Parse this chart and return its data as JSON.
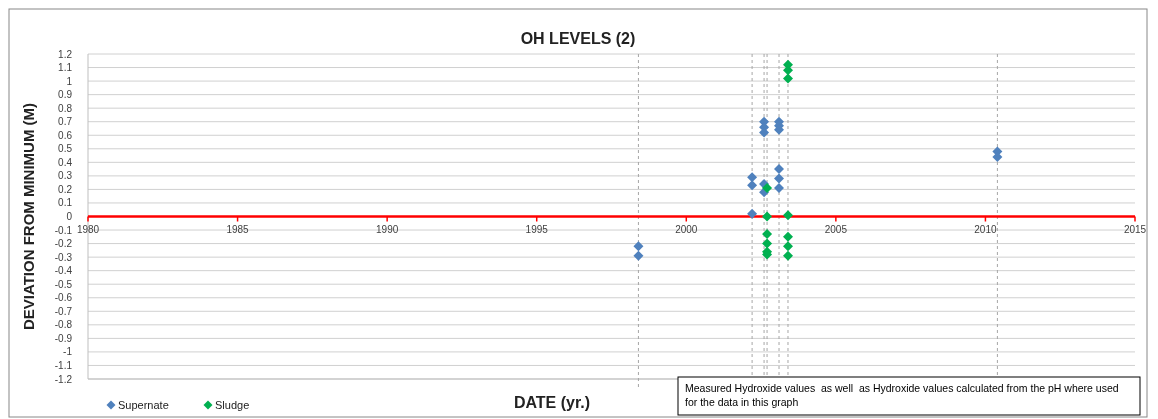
{
  "chart_data": {
    "type": "scatter",
    "title": "OH LEVELS (2)",
    "xlabel": "DATE (yr.)",
    "ylabel": "DEVIATION FROM MINIMUM (M)",
    "series": [
      {
        "name": "Supernate",
        "color": "#4f81bd",
        "x": [
          1998.4,
          1998.4,
          2002.2,
          2002.2,
          2002.2,
          2002.6,
          2002.6,
          2002.6,
          2002.6,
          2002.6,
          2003.1,
          2003.1,
          2003.1,
          2003.1,
          2003.1,
          2003.1,
          2010.4,
          2010.4
        ],
        "values": [
          -0.22,
          -0.29,
          0.29,
          0.23,
          0.02,
          0.7,
          0.66,
          0.62,
          0.24,
          0.18,
          0.7,
          0.67,
          0.64,
          0.35,
          0.28,
          0.21,
          0.48,
          0.44
        ]
      },
      {
        "name": "Sludge",
        "color": "#00b050",
        "x": [
          2002.7,
          2002.7,
          2002.7,
          2002.7,
          2002.7,
          2002.7,
          2003.4,
          2003.4,
          2003.4,
          2003.4,
          2003.4,
          2003.4,
          2003.4
        ],
        "values": [
          0.21,
          0,
          -0.13,
          -0.2,
          -0.26,
          -0.28,
          1.12,
          1.08,
          1.02,
          0.01,
          -0.15,
          -0.22,
          -0.29
        ]
      }
    ],
    "xlim": [
      1980,
      2015
    ],
    "xticks": [
      1980,
      1985,
      1990,
      1995,
      2000,
      2005,
      2010,
      2015
    ],
    "ylim": [
      -1.2,
      1.2
    ],
    "yticks": [
      -1.2,
      -1.1,
      -1,
      -0.9,
      -0.8,
      -0.7,
      -0.6,
      -0.5,
      -0.4,
      -0.3,
      -0.2,
      -0.1,
      0,
      0.1,
      0.2,
      0.3,
      0.4,
      0.5,
      0.6,
      0.7,
      0.8,
      0.9,
      1,
      1.1,
      1.2
    ],
    "ref_lines": [
      {
        "axis": "x",
        "value": 1998.4,
        "color": "#a6a6a6",
        "line_style": "dashed"
      },
      {
        "axis": "x",
        "value": 2002.2,
        "color": "#a6a6a6",
        "line_style": "dashed"
      },
      {
        "axis": "x",
        "value": 2002.6,
        "color": "#a6a6a6",
        "line_style": "dashed"
      },
      {
        "axis": "x",
        "value": 2002.7,
        "color": "#a6a6a6",
        "line_style": "dashed"
      },
      {
        "axis": "x",
        "value": 2003.1,
        "color": "#a6a6a6",
        "line_style": "dashed"
      },
      {
        "axis": "x",
        "value": 2003.4,
        "color": "#a6a6a6",
        "line_style": "dashed"
      },
      {
        "axis": "x",
        "value": 2010.4,
        "color": "#a6a6a6",
        "line_style": "dashed"
      }
    ],
    "annotations": [
      "Measured Hydroxide values  as well  as Hydroxide values calculated from the pH where used for the data in this graph"
    ],
    "grid": "y",
    "legend": "bottom left",
    "marker": "diamond"
  }
}
